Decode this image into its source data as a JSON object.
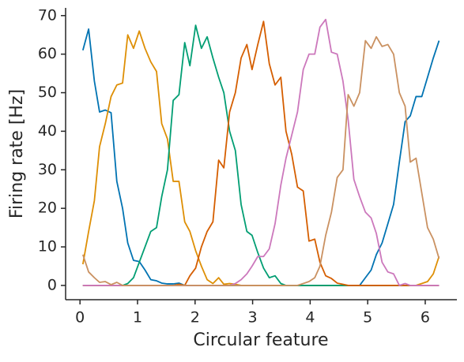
{
  "chart_data": {
    "type": "line",
    "xlabel": "Circular feature",
    "ylabel": "Firing rate [Hz]",
    "x": [
      0.05,
      0.15,
      0.25,
      0.34,
      0.44,
      0.54,
      0.64,
      0.74,
      0.83,
      0.93,
      1.03,
      1.13,
      1.23,
      1.33,
      1.42,
      1.52,
      1.62,
      1.72,
      1.82,
      1.91,
      2.01,
      2.11,
      2.21,
      2.31,
      2.41,
      2.5,
      2.6,
      2.7,
      2.8,
      2.9,
      2.99,
      3.09,
      3.19,
      3.29,
      3.39,
      3.49,
      3.58,
      3.68,
      3.78,
      3.88,
      3.98,
      4.08,
      4.17,
      4.27,
      4.37,
      4.47,
      4.57,
      4.66,
      4.76,
      4.86,
      4.96,
      5.06,
      5.15,
      5.25,
      5.35,
      5.45,
      5.55,
      5.65,
      5.74,
      5.84,
      5.94,
      6.04,
      6.14,
      6.24
    ],
    "series": [
      {
        "color": "#0173b2",
        "values": [
          61,
          66.5,
          53,
          45,
          45.5,
          44.8,
          27,
          20,
          11,
          6.5,
          6.2,
          4,
          1.5,
          1.2,
          0.6,
          0.4,
          0.4,
          0.6,
          0,
          0,
          0,
          0,
          0,
          0,
          0,
          0,
          0,
          0,
          0,
          0,
          0,
          0,
          0,
          0,
          0,
          0,
          0,
          0,
          0,
          0,
          0,
          0,
          0,
          0,
          0,
          0,
          0,
          0,
          0,
          0,
          2,
          4,
          8,
          11,
          16,
          21,
          32,
          42.5,
          44,
          49,
          49,
          54,
          59,
          63.5
        ]
      },
      {
        "color": "#de8f05",
        "values": [
          5.5,
          14,
          22,
          36,
          42,
          49,
          52,
          52.5,
          65,
          61.5,
          66,
          61.5,
          58,
          55.5,
          42,
          38,
          27,
          27,
          16.5,
          14,
          9,
          5,
          1.5,
          0.5,
          2,
          0.3,
          0.5,
          0.3,
          0,
          0,
          0,
          0,
          0,
          0,
          0,
          0,
          0,
          0,
          0,
          0,
          0,
          0,
          0,
          0,
          0,
          0,
          0,
          0,
          0,
          0,
          0,
          0,
          0,
          0,
          0,
          0,
          0,
          0,
          0,
          0,
          0.5,
          1,
          3,
          7.5
        ]
      },
      {
        "color": "#029e73",
        "values": [
          0,
          0,
          0,
          0,
          0,
          0,
          0,
          0,
          0.5,
          2,
          6,
          10,
          14,
          15,
          23,
          30,
          48,
          49.5,
          63,
          57,
          67.5,
          61.5,
          64.5,
          59,
          54,
          50,
          40,
          35,
          21,
          14,
          13,
          8.5,
          4.5,
          2,
          2.5,
          0.5,
          0,
          0,
          0,
          0,
          0,
          0,
          0,
          0,
          0,
          0,
          0,
          0,
          0,
          0,
          0,
          0,
          0,
          0,
          0,
          0,
          0,
          0,
          0,
          0,
          0,
          0,
          0,
          0
        ]
      },
      {
        "color": "#d55e00",
        "values": [
          0,
          0,
          0,
          0,
          0,
          0,
          0,
          0,
          0,
          0,
          0,
          0,
          0,
          0,
          0,
          0,
          0,
          0.3,
          0,
          2.5,
          4.5,
          10,
          14,
          16.5,
          32.5,
          30.5,
          45,
          50,
          59,
          62.5,
          56,
          62.5,
          68.5,
          57.5,
          52,
          54,
          40,
          34,
          25.5,
          24.5,
          11.5,
          12,
          6,
          2.5,
          1.8,
          0.6,
          0.3,
          0,
          0,
          0,
          0,
          0,
          0,
          0,
          0,
          0,
          0,
          0,
          0,
          0,
          0,
          0,
          0,
          0
        ]
      },
      {
        "color": "#cc78bc",
        "values": [
          0,
          0,
          0,
          0,
          0,
          0,
          0,
          0,
          0,
          0,
          0,
          0,
          0,
          0,
          0,
          0,
          0,
          0,
          0,
          0,
          0,
          0,
          0,
          0,
          0,
          0,
          0,
          0.5,
          1.5,
          3,
          5,
          7.5,
          7.5,
          9.5,
          16,
          26,
          33,
          39,
          45,
          56,
          60,
          60,
          67,
          69,
          60.5,
          60,
          53,
          43,
          27.5,
          23,
          19,
          17.5,
          13.5,
          6,
          3.5,
          3,
          0,
          0.5,
          0,
          0,
          0,
          0,
          0,
          0
        ]
      },
      {
        "color": "#ca9161",
        "values": [
          8,
          3.5,
          2,
          0.8,
          1,
          0.2,
          0.8,
          0,
          0,
          0,
          0,
          0,
          0,
          0,
          0,
          0,
          0,
          0,
          0,
          0,
          0,
          0,
          0,
          0,
          0,
          0,
          0,
          0,
          0,
          0,
          0,
          0,
          0,
          0,
          0,
          0,
          0,
          0,
          0,
          0.5,
          1,
          2,
          5,
          13,
          19,
          28,
          30,
          49.5,
          46.5,
          50,
          63.5,
          61.5,
          64.5,
          62,
          62.5,
          60,
          50,
          46.5,
          32,
          33,
          24,
          15,
          12,
          7
        ]
      }
    ],
    "xlim": [
      -0.25,
      6.55
    ],
    "ylim": [
      -3.7,
      72
    ],
    "xticks": [
      0,
      1,
      2,
      3,
      4,
      5,
      6
    ],
    "yticks": [
      0,
      10,
      20,
      30,
      40,
      50,
      60,
      70
    ]
  }
}
